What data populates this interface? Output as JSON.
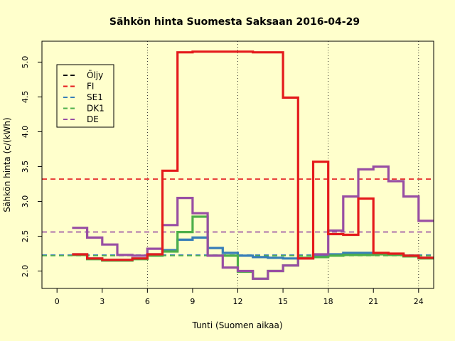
{
  "chart_data": {
    "type": "line",
    "title": "Sähkön hinta Suomesta Saksaan 2016-04-29",
    "xlabel": "Tunti (Suomen aikaa)",
    "ylabel": "Sähkön hinta (c/(kWh)",
    "xlim": [
      -1,
      25
    ],
    "ylim": [
      1.75,
      5.3
    ],
    "x_ticks": [
      0,
      3,
      6,
      9,
      12,
      15,
      18,
      21,
      24
    ],
    "y_ticks": [
      2.0,
      2.5,
      3.0,
      3.5,
      4.0,
      4.5,
      5.0
    ],
    "y_tick_labels": [
      "2.0",
      "2.5",
      "3.0",
      "3.5",
      "4.0",
      "4.5",
      "5.0"
    ],
    "vlines": [
      6,
      12,
      18,
      24
    ],
    "legend_position": "top-left",
    "legend": [
      {
        "label": "Öljy",
        "color": "#000000"
      },
      {
        "label": "FI",
        "color": "#E41A1C"
      },
      {
        "label": "SE1",
        "color": "#377EB8"
      },
      {
        "label": "DK1",
        "color": "#4DAF4A"
      },
      {
        "label": "DE",
        "color": "#984EA3"
      }
    ],
    "hlines": [
      {
        "name": "FI",
        "value": 3.32,
        "color": "#E41A1C"
      },
      {
        "name": "SE1",
        "value": 2.23,
        "color": "#377EB8"
      },
      {
        "name": "DK1",
        "value": 2.22,
        "color": "#4DAF4A"
      },
      {
        "name": "DE",
        "value": 2.56,
        "color": "#984EA3"
      }
    ],
    "x": [
      1,
      2,
      3,
      4,
      5,
      6,
      7,
      8,
      9,
      10,
      11,
      12,
      13,
      14,
      15,
      16,
      17,
      18,
      19,
      20,
      21,
      22,
      23,
      24
    ],
    "series": [
      {
        "name": "SE1",
        "color": "#377EB8",
        "values": [
          2.24,
          2.18,
          2.16,
          2.16,
          2.18,
          2.24,
          2.3,
          2.45,
          2.48,
          2.33,
          2.26,
          2.22,
          2.2,
          2.19,
          2.18,
          2.18,
          2.21,
          2.24,
          2.26,
          2.26,
          2.25,
          2.24,
          2.22,
          2.19
        ]
      },
      {
        "name": "DK1",
        "color": "#4DAF4A",
        "values": [
          2.23,
          2.17,
          2.15,
          2.15,
          2.17,
          2.22,
          2.28,
          2.56,
          2.78,
          2.22,
          2.22,
          1.99,
          1.89,
          2.0,
          2.08,
          2.19,
          2.2,
          2.22,
          2.23,
          2.23,
          2.24,
          2.23,
          2.21,
          2.18
        ]
      },
      {
        "name": "DE",
        "color": "#984EA3",
        "values": [
          2.62,
          2.48,
          2.38,
          2.23,
          2.22,
          2.32,
          2.66,
          3.05,
          2.83,
          2.22,
          2.05,
          2.0,
          1.89,
          2.0,
          2.08,
          2.18,
          2.24,
          2.58,
          3.07,
          3.46,
          3.5,
          3.29,
          3.07,
          2.72
        ]
      },
      {
        "name": "FI",
        "color": "#E41A1C",
        "values": [
          2.24,
          2.18,
          2.16,
          2.16,
          2.18,
          2.24,
          3.44,
          5.14,
          5.15,
          5.15,
          5.15,
          5.15,
          5.14,
          5.14,
          4.49,
          2.18,
          3.57,
          2.53,
          2.52,
          3.04,
          2.26,
          2.25,
          2.22,
          2.19
        ]
      }
    ]
  }
}
